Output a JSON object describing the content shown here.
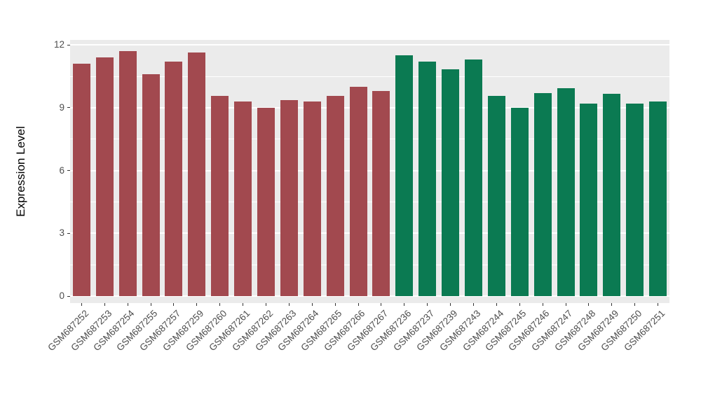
{
  "figure": {
    "background": "#FFFFFF",
    "panel_background": "#EBEBEB",
    "grid_color": "#FFFFFF",
    "axis_text_color": "#4D4D4D",
    "axis_title_color": "#000000"
  },
  "chart_data": {
    "type": "bar",
    "title": "",
    "xlabel": "",
    "ylabel": "Expression Level",
    "ylim": [
      0,
      12.24
    ],
    "yticks": [
      0,
      3,
      6,
      9,
      12
    ],
    "yticks_minor": [
      1.5,
      4.5,
      7.5,
      10.5
    ],
    "grid": true,
    "legend": "none",
    "categories": [
      "GSM687252",
      "GSM687253",
      "GSM687254",
      "GSM687255",
      "GSM687257",
      "GSM687259",
      "GSM687260",
      "GSM687261",
      "GSM687262",
      "GSM687263",
      "GSM687264",
      "GSM687265",
      "GSM687266",
      "GSM687267",
      "GSM687236",
      "GSM687237",
      "GSM687239",
      "GSM687243",
      "GSM687244",
      "GSM687245",
      "GSM687246",
      "GSM687247",
      "GSM687248",
      "GSM687249",
      "GSM687250",
      "GSM687251"
    ],
    "values": [
      11.1,
      11.4,
      11.7,
      10.6,
      11.2,
      11.65,
      9.55,
      9.3,
      9.0,
      9.35,
      9.3,
      9.55,
      10.0,
      9.8,
      11.5,
      11.2,
      10.85,
      11.3,
      9.55,
      9.0,
      9.7,
      9.95,
      9.2,
      9.65,
      9.2,
      9.3
    ],
    "bar_groups": [
      "group1",
      "group1",
      "group1",
      "group1",
      "group1",
      "group1",
      "group1",
      "group1",
      "group1",
      "group1",
      "group1",
      "group1",
      "group1",
      "group1",
      "group2",
      "group2",
      "group2",
      "group2",
      "group2",
      "group2",
      "group2",
      "group2",
      "group2",
      "group2",
      "group2",
      "group2"
    ],
    "group_colors": {
      "group1": "#A2494F",
      "group2": "#0B7A52"
    }
  }
}
